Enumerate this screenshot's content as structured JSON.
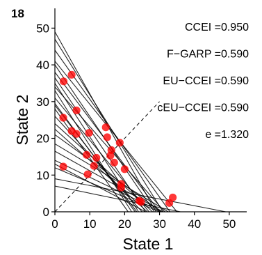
{
  "chart_data": {
    "type": "scatter",
    "panel_label": "18",
    "xlabel": "State 1",
    "ylabel": "State 2",
    "xlim": [
      0,
      55
    ],
    "ylim": [
      0,
      55
    ],
    "xticks": [
      0,
      10,
      20,
      30,
      40,
      50
    ],
    "yticks": [
      0,
      10,
      20,
      30,
      40,
      50
    ],
    "grid": false,
    "diagonal": {
      "style": "dashed",
      "from": [
        0,
        0
      ],
      "to": [
        30,
        30
      ]
    },
    "budget_lines": [
      [
        [
          0,
          49.0
        ],
        [
          29.0,
          0
        ]
      ],
      [
        [
          0,
          47.0
        ],
        [
          31.0,
          0
        ]
      ],
      [
        [
          0,
          44.0
        ],
        [
          33.0,
          0
        ]
      ],
      [
        [
          0,
          41.0
        ],
        [
          35.0,
          0
        ]
      ],
      [
        [
          0,
          38.0
        ],
        [
          30.0,
          0
        ]
      ],
      [
        [
          0,
          36.5
        ],
        [
          26.0,
          0
        ]
      ],
      [
        [
          0,
          35.0
        ],
        [
          24.0,
          0
        ]
      ],
      [
        [
          0,
          33.0
        ],
        [
          22.0,
          0
        ]
      ],
      [
        [
          0,
          31.0
        ],
        [
          27.0,
          0
        ]
      ],
      [
        [
          0,
          29.5
        ],
        [
          23.0,
          0
        ]
      ],
      [
        [
          0,
          28.0
        ],
        [
          21.0,
          0
        ]
      ],
      [
        [
          0,
          26.0
        ],
        [
          25.0,
          0
        ]
      ],
      [
        [
          0,
          24.0
        ],
        [
          28.0,
          0
        ]
      ],
      [
        [
          0,
          22.5
        ],
        [
          26.5,
          0
        ]
      ],
      [
        [
          0,
          21.0
        ],
        [
          30.5,
          0
        ]
      ],
      [
        [
          0,
          18.5
        ],
        [
          32.5,
          0
        ]
      ],
      [
        [
          0,
          16.5
        ],
        [
          31.0,
          0
        ]
      ],
      [
        [
          0,
          14.0
        ],
        [
          30.5,
          0
        ]
      ],
      [
        [
          0,
          13.0
        ],
        [
          26.0,
          0
        ]
      ],
      [
        [
          0,
          12.0
        ],
        [
          30.0,
          0
        ]
      ],
      [
        [
          0,
          9.0
        ],
        [
          49.0,
          0
        ]
      ],
      [
        [
          0,
          7.0
        ],
        [
          36.0,
          0
        ]
      ],
      [
        [
          0,
          29.0
        ],
        [
          23.5,
          0
        ]
      ],
      [
        [
          0,
          40.0
        ],
        [
          28.5,
          0
        ]
      ],
      [
        [
          0,
          34.0
        ],
        [
          31.5,
          0
        ]
      ]
    ],
    "points": [
      {
        "x": 2.5,
        "y": 35.5
      },
      {
        "x": 4.8,
        "y": 37.3
      },
      {
        "x": 6.2,
        "y": 27.6
      },
      {
        "x": 2.4,
        "y": 25.6
      },
      {
        "x": 4.8,
        "y": 22.0
      },
      {
        "x": 6.2,
        "y": 21.2
      },
      {
        "x": 9.8,
        "y": 21.5
      },
      {
        "x": 14.6,
        "y": 23.0
      },
      {
        "x": 15.0,
        "y": 20.3
      },
      {
        "x": 18.6,
        "y": 18.8
      },
      {
        "x": 16.2,
        "y": 16.8
      },
      {
        "x": 15.9,
        "y": 15.3
      },
      {
        "x": 17.0,
        "y": 13.4
      },
      {
        "x": 20.0,
        "y": 11.6
      },
      {
        "x": 9.1,
        "y": 15.5
      },
      {
        "x": 11.9,
        "y": 14.7
      },
      {
        "x": 11.2,
        "y": 12.5
      },
      {
        "x": 2.4,
        "y": 12.3
      },
      {
        "x": 9.4,
        "y": 10.2
      },
      {
        "x": 19.0,
        "y": 7.6
      },
      {
        "x": 19.0,
        "y": 6.6
      },
      {
        "x": 24.2,
        "y": 3.0
      },
      {
        "x": 24.7,
        "y": 2.7
      },
      {
        "x": 33.8,
        "y": 3.9
      },
      {
        "x": 32.8,
        "y": 2.4
      }
    ],
    "annotations": [
      {
        "label": "CCEI",
        "value": "0.950"
      },
      {
        "label": "F−GARP",
        "value": "0.590"
      },
      {
        "label": "EU−CCEI",
        "value": "0.590"
      },
      {
        "label": "cEU−CCEI",
        "value": "0.590"
      },
      {
        "label": "e",
        "value": "1.320"
      }
    ],
    "colors": {
      "points": "#ff0000",
      "lines": "#000000"
    }
  }
}
